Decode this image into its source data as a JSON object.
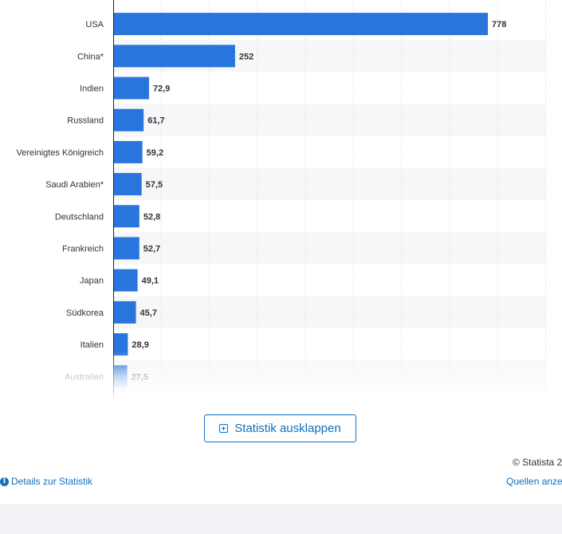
{
  "chart_data": {
    "type": "bar",
    "orientation": "horizontal",
    "categories": [
      "USA",
      "China*",
      "Indien",
      "Russland",
      "Vereinigtes Königreich",
      "Saudi Arabien*",
      "Deutschland",
      "Frankreich",
      "Japan",
      "Südkorea",
      "Italien",
      "Australien"
    ],
    "values": [
      778,
      252,
      72.9,
      61.7,
      59.2,
      57.5,
      52.8,
      52.7,
      49.1,
      45.7,
      28.9,
      27.5
    ],
    "value_labels": [
      "778",
      "252",
      "72,9",
      "61,7",
      "59,2",
      "57,5",
      "52,8",
      "52,7",
      "49,1",
      "45,7",
      "28,9",
      "27,5"
    ],
    "xlim": [
      0,
      900
    ],
    "grid": true,
    "bar_color": "#2876dd"
  },
  "ui": {
    "expand_label": "Statistik ausklappen",
    "copyright": "© Statista 2",
    "details_label": "Details zur Statistik",
    "sources_label": "Quellen anze",
    "info_icon_glyph": "i"
  }
}
